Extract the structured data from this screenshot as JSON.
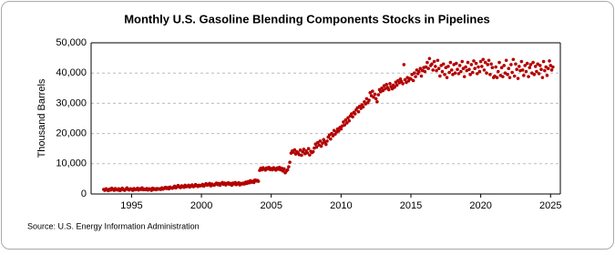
{
  "chart_data": {
    "type": "scatter",
    "title": "Monthly U.S. Gasoline Blending Components Stocks in Pipelines",
    "y_label": "Thousand Barrels",
    "source": "Source: U.S. Energy Information Administration",
    "color": "#b30000",
    "grid": true,
    "xlim": [
      1992.1,
      2025.7
    ],
    "xticks": [
      1995,
      2000,
      2005,
      2010,
      2015,
      2020,
      2025
    ],
    "ylim": [
      0,
      50000
    ],
    "yticks": [
      {
        "value": 0,
        "label": "0"
      },
      {
        "value": 10000,
        "label": "10,000"
      },
      {
        "value": 20000,
        "label": "20,000"
      },
      {
        "value": 30000,
        "label": "30,000"
      },
      {
        "value": 40000,
        "label": "40,000"
      },
      {
        "value": 50000,
        "label": "50,000"
      }
    ],
    "x": [
      1993.0,
      1993.08,
      1993.17,
      1993.25,
      1993.33,
      1993.42,
      1993.5,
      1993.58,
      1993.67,
      1993.75,
      1993.83,
      1993.92,
      1994.0,
      1994.08,
      1994.17,
      1994.25,
      1994.33,
      1994.42,
      1994.5,
      1994.58,
      1994.67,
      1994.75,
      1994.83,
      1994.92,
      1995.0,
      1995.08,
      1995.17,
      1995.25,
      1995.33,
      1995.42,
      1995.5,
      1995.58,
      1995.67,
      1995.75,
      1995.83,
      1995.92,
      1996.0,
      1996.08,
      1996.17,
      1996.25,
      1996.33,
      1996.42,
      1996.5,
      1996.58,
      1996.67,
      1996.75,
      1996.83,
      1996.92,
      1997.0,
      1997.08,
      1997.17,
      1997.25,
      1997.33,
      1997.42,
      1997.5,
      1997.58,
      1997.67,
      1997.75,
      1997.83,
      1997.92,
      1998.0,
      1998.08,
      1998.17,
      1998.25,
      1998.33,
      1998.42,
      1998.5,
      1998.58,
      1998.67,
      1998.75,
      1998.83,
      1998.92,
      1999.0,
      1999.08,
      1999.17,
      1999.25,
      1999.33,
      1999.42,
      1999.5,
      1999.58,
      1999.67,
      1999.75,
      1999.83,
      1999.92,
      2000.0,
      2000.08,
      2000.17,
      2000.25,
      2000.33,
      2000.42,
      2000.5,
      2000.58,
      2000.67,
      2000.75,
      2000.83,
      2000.92,
      2001.0,
      2001.08,
      2001.17,
      2001.25,
      2001.33,
      2001.42,
      2001.5,
      2001.58,
      2001.67,
      2001.75,
      2001.83,
      2001.92,
      2002.0,
      2002.08,
      2002.17,
      2002.25,
      2002.33,
      2002.42,
      2002.5,
      2002.58,
      2002.67,
      2002.75,
      2002.83,
      2002.92,
      2003.0,
      2003.08,
      2003.17,
      2003.25,
      2003.33,
      2003.42,
      2003.5,
      2003.58,
      2003.67,
      2003.75,
      2003.83,
      2003.92,
      2004.0,
      2004.08,
      2004.17,
      2004.25,
      2004.33,
      2004.42,
      2004.5,
      2004.58,
      2004.67,
      2004.75,
      2004.83,
      2004.92,
      2005.0,
      2005.08,
      2005.17,
      2005.25,
      2005.33,
      2005.42,
      2005.5,
      2005.58,
      2005.67,
      2005.75,
      2005.83,
      2005.92,
      2006.0,
      2006.08,
      2006.17,
      2006.25,
      2006.33,
      2006.42,
      2006.5,
      2006.58,
      2006.67,
      2006.75,
      2006.83,
      2006.92,
      2007.0,
      2007.08,
      2007.17,
      2007.25,
      2007.33,
      2007.42,
      2007.5,
      2007.58,
      2007.67,
      2007.75,
      2007.83,
      2007.92,
      2008.0,
      2008.08,
      2008.17,
      2008.25,
      2008.33,
      2008.42,
      2008.5,
      2008.58,
      2008.67,
      2008.75,
      2008.83,
      2008.92,
      2009.0,
      2009.08,
      2009.17,
      2009.25,
      2009.33,
      2009.42,
      2009.5,
      2009.58,
      2009.67,
      2009.75,
      2009.83,
      2009.92,
      2010.0,
      2010.08,
      2010.17,
      2010.25,
      2010.33,
      2010.42,
      2010.5,
      2010.58,
      2010.67,
      2010.75,
      2010.83,
      2010.92,
      2011.0,
      2011.08,
      2011.17,
      2011.25,
      2011.33,
      2011.42,
      2011.5,
      2011.58,
      2011.67,
      2011.75,
      2011.83,
      2011.92,
      2012.0,
      2012.08,
      2012.17,
      2012.25,
      2012.33,
      2012.42,
      2012.5,
      2012.58,
      2012.67,
      2012.75,
      2012.83,
      2012.92,
      2013.0,
      2013.08,
      2013.17,
      2013.25,
      2013.33,
      2013.42,
      2013.5,
      2013.58,
      2013.67,
      2013.75,
      2013.83,
      2013.92,
      2014.0,
      2014.08,
      2014.17,
      2014.25,
      2014.33,
      2014.42,
      2014.5,
      2014.58,
      2014.67,
      2014.75,
      2014.83,
      2014.92,
      2015.0,
      2015.08,
      2015.17,
      2015.25,
      2015.33,
      2015.42,
      2015.5,
      2015.58,
      2015.67,
      2015.75,
      2015.83,
      2015.92,
      2016.0,
      2016.08,
      2016.17,
      2016.25,
      2016.33,
      2016.42,
      2016.5,
      2016.58,
      2016.67,
      2016.75,
      2016.83,
      2016.92,
      2017.0,
      2017.08,
      2017.17,
      2017.25,
      2017.33,
      2017.42,
      2017.5,
      2017.58,
      2017.67,
      2017.75,
      2017.83,
      2017.92,
      2018.0,
      2018.08,
      2018.17,
      2018.25,
      2018.33,
      2018.42,
      2018.5,
      2018.58,
      2018.67,
      2018.75,
      2018.83,
      2018.92,
      2019.0,
      2019.08,
      2019.17,
      2019.25,
      2019.33,
      2019.42,
      2019.5,
      2019.58,
      2019.67,
      2019.75,
      2019.83,
      2019.92,
      2020.0,
      2020.08,
      2020.17,
      2020.25,
      2020.33,
      2020.42,
      2020.5,
      2020.58,
      2020.67,
      2020.75,
      2020.83,
      2020.92,
      2021.0,
      2021.08,
      2021.17,
      2021.25,
      2021.33,
      2021.42,
      2021.5,
      2021.58,
      2021.67,
      2021.75,
      2021.83,
      2021.92,
      2022.0,
      2022.08,
      2022.17,
      2022.25,
      2022.33,
      2022.42,
      2022.5,
      2022.58,
      2022.67,
      2022.75,
      2022.83,
      2022.92,
      2023.0,
      2023.08,
      2023.17,
      2023.25,
      2023.33,
      2023.42,
      2023.5,
      2023.58,
      2023.67,
      2023.75,
      2023.83,
      2023.92,
      2024.0,
      2024.08,
      2024.17,
      2024.25,
      2024.33,
      2024.42,
      2024.5,
      2024.58,
      2024.67,
      2024.75,
      2024.83,
      2024.92,
      2025.0,
      2025.08,
      2025.17
    ],
    "values": [
      1500,
      1200,
      1700,
      1400,
      1100,
      1600,
      1300,
      1900,
      1500,
      1200,
      1800,
      1400,
      1300,
      1700,
      1100,
      1500,
      1900,
      1400,
      1200,
      1600,
      2000,
      1500,
      1300,
      1700,
      1600,
      1200,
      1800,
      1400,
      1500,
      1900,
      1300,
      1700,
      1500,
      2000,
      1400,
      1600,
      1400,
      1800,
      1300,
      1700,
      1600,
      1200,
      1900,
      1500,
      1700,
      1400,
      1800,
      1600,
      1700,
      1500,
      2000,
      1600,
      1900,
      2200,
      1800,
      2100,
      1700,
      2300,
      2000,
      1900,
      2200,
      2600,
      2000,
      2400,
      2800,
      2300,
      2100,
      2700,
      2500,
      2200,
      2900,
      2400,
      2500,
      2900,
      2300,
      2700,
      3000,
      2400,
      2600,
      3100,
      2800,
      2500,
      2900,
      2700,
      2800,
      3200,
      2600,
      3000,
      3400,
      2900,
      3100,
      3500,
      2700,
      3300,
      3000,
      2900,
      3300,
      3600,
      3100,
      3500,
      2900,
      3400,
      3800,
      3200,
      3600,
      3000,
      3500,
      3700,
      3200,
      3500,
      2900,
      3600,
      3300,
      3800,
      3100,
      3400,
      3700,
      3000,
      3500,
      3300,
      3600,
      3300,
      3900,
      3500,
      4100,
      3700,
      4400,
      3900,
      4200,
      3800,
      4600,
      4300,
      4500,
      4200,
      7800,
      8500,
      8000,
      8700,
      8200,
      7900,
      8600,
      8300,
      8800,
      8100,
      8400,
      8000,
      8700,
      8300,
      7900,
      8600,
      8200,
      8800,
      8000,
      8500,
      7600,
      8300,
      7000,
      7600,
      8000,
      9000,
      10500,
      13500,
      14200,
      13800,
      14600,
      13200,
      14000,
      13600,
      13000,
      14500,
      12800,
      13900,
      14800,
      13300,
      14200,
      13600,
      15000,
      12900,
      14100,
      13700,
      14000,
      15200,
      16500,
      15500,
      17000,
      16200,
      17500,
      15800,
      16800,
      18000,
      17200,
      16400,
      17500,
      18800,
      19500,
      18200,
      20000,
      19200,
      21000,
      19800,
      20500,
      21500,
      20800,
      22000,
      21500,
      22500,
      23800,
      22800,
      24500,
      23500,
      25200,
      24200,
      25800,
      26500,
      25500,
      27000,
      26500,
      27800,
      28500,
      27200,
      29000,
      28300,
      29500,
      28800,
      30500,
      29800,
      31500,
      30200,
      31000,
      33500,
      32500,
      34000,
      32000,
      33000,
      31500,
      30500,
      32800,
      34500,
      33800,
      35000,
      34200,
      35800,
      34800,
      36200,
      35200,
      34500,
      36500,
      35500,
      34800,
      36000,
      35300,
      37000,
      36000,
      37500,
      36800,
      38000,
      37200,
      36500,
      42800,
      37800,
      36900,
      38500,
      37400,
      38200,
      38000,
      39500,
      37500,
      40000,
      38800,
      41000,
      39800,
      40500,
      41500,
      39000,
      40800,
      41800,
      40500,
      42000,
      43500,
      41500,
      44800,
      42500,
      43000,
      41000,
      43800,
      42200,
      40800,
      44200,
      41500,
      39000,
      42500,
      40500,
      43000,
      39500,
      41800,
      38500,
      42200,
      40200,
      43500,
      41000,
      39500,
      42800,
      40000,
      43200,
      41200,
      39800,
      42500,
      40500,
      43800,
      41500,
      38800,
      42000,
      40800,
      43500,
      41200,
      39500,
      42800,
      40200,
      44000,
      41500,
      43200,
      39800,
      42000,
      40500,
      43800,
      42200,
      44500,
      41000,
      43500,
      40000,
      42800,
      44200,
      39500,
      43000,
      41800,
      38500,
      39000,
      42000,
      38500,
      40500,
      43500,
      39200,
      41800,
      38800,
      42500,
      40000,
      44200,
      39500,
      41500,
      38500,
      42800,
      40200,
      44500,
      39000,
      43000,
      41200,
      38200,
      42200,
      40800,
      43800,
      41000,
      39200,
      42500,
      40500,
      43200,
      38800,
      41800,
      42800,
      40000,
      43500,
      39500,
      42200,
      40500,
      43000,
      39800,
      42500,
      41200,
      38500,
      43800,
      40800,
      42000,
      39200,
      41500,
      44000,
      42500,
      41000,
      42000
    ]
  }
}
